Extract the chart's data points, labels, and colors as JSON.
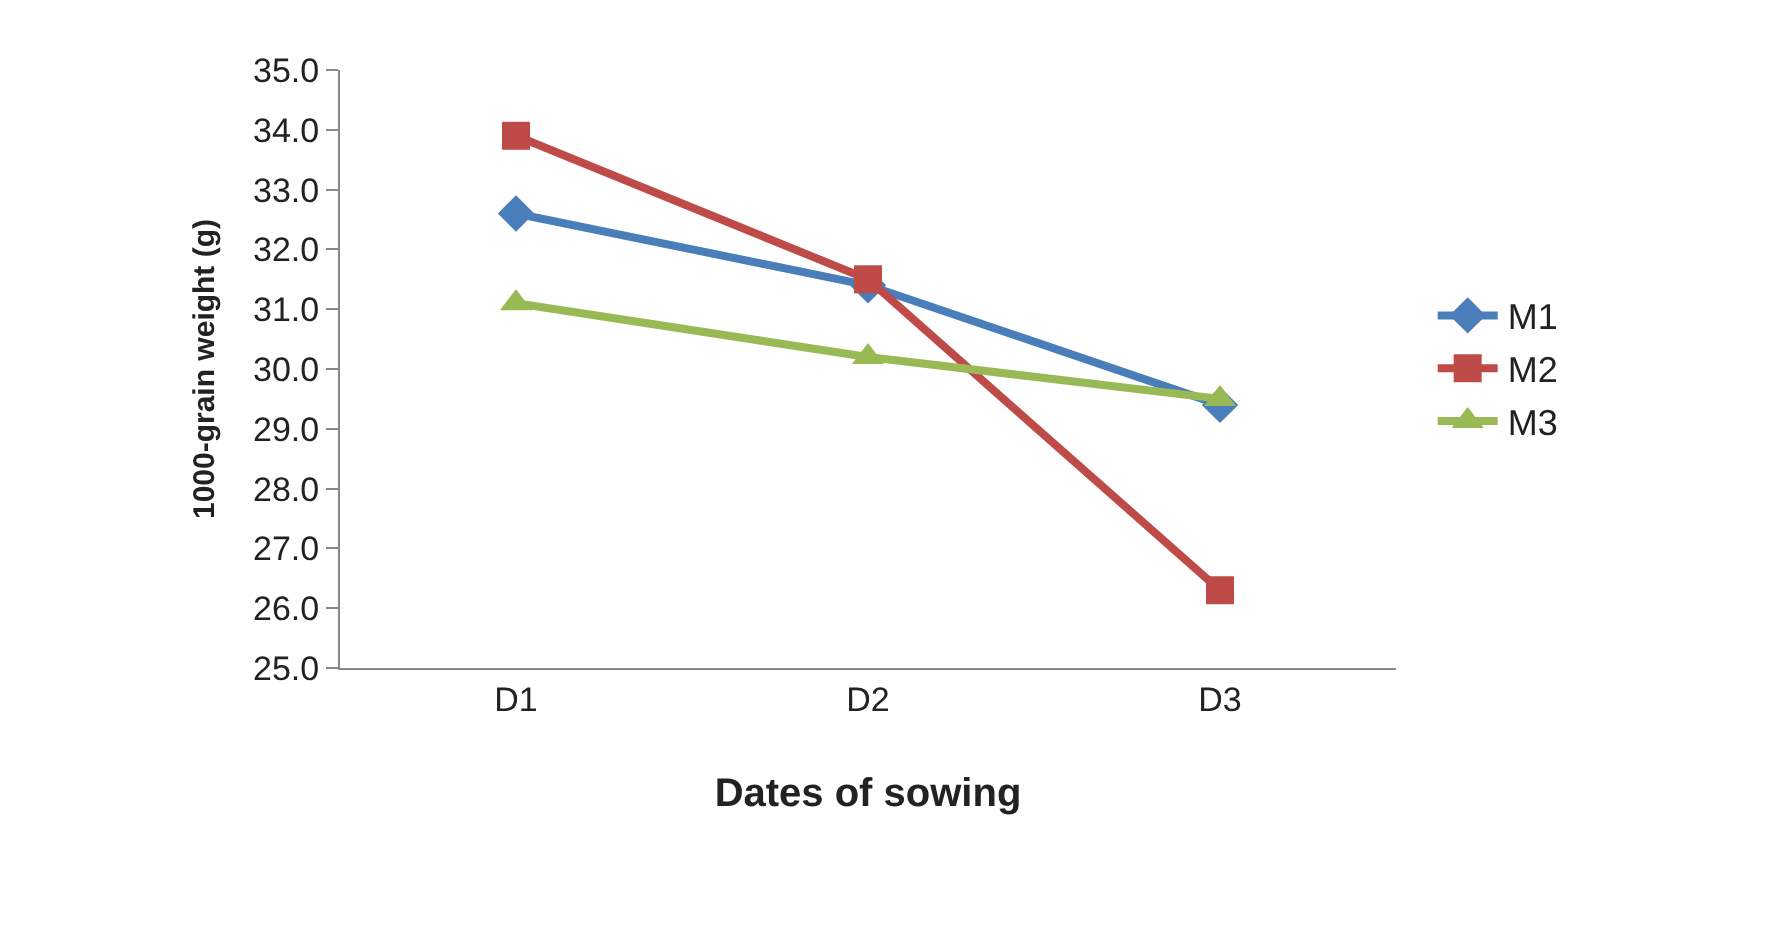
{
  "chart_data": {
    "type": "line",
    "xlabel": "Dates of sowing",
    "ylabel": "1000-grain weight (g)",
    "categories": [
      "D1",
      "D2",
      "D3"
    ],
    "series": [
      {
        "name": "M1",
        "color": "#4a7ebb",
        "marker": "diamond",
        "values": [
          32.6,
          31.4,
          29.4
        ]
      },
      {
        "name": "M2",
        "color": "#be4b48",
        "marker": "square",
        "values": [
          33.9,
          31.5,
          26.3
        ]
      },
      {
        "name": "M3",
        "color": "#98b954",
        "marker": "triangle",
        "values": [
          31.1,
          30.2,
          29.5
        ]
      }
    ],
    "ylim": [
      25,
      35
    ],
    "yticks": [
      {
        "value": 25,
        "label": "25.0"
      },
      {
        "value": 26,
        "label": "26.0"
      },
      {
        "value": 27,
        "label": "27.0"
      },
      {
        "value": 28,
        "label": "28.0"
      },
      {
        "value": 29,
        "label": "29.0"
      },
      {
        "value": 30,
        "label": "30.0"
      },
      {
        "value": 31,
        "label": "31.0"
      },
      {
        "value": 32,
        "label": "32.0"
      },
      {
        "value": 33,
        "label": "33.0"
      },
      {
        "value": 34,
        "label": "34.0"
      },
      {
        "value": 35,
        "label": "35.0"
      }
    ],
    "legend": "right",
    "line_style": "solid"
  }
}
